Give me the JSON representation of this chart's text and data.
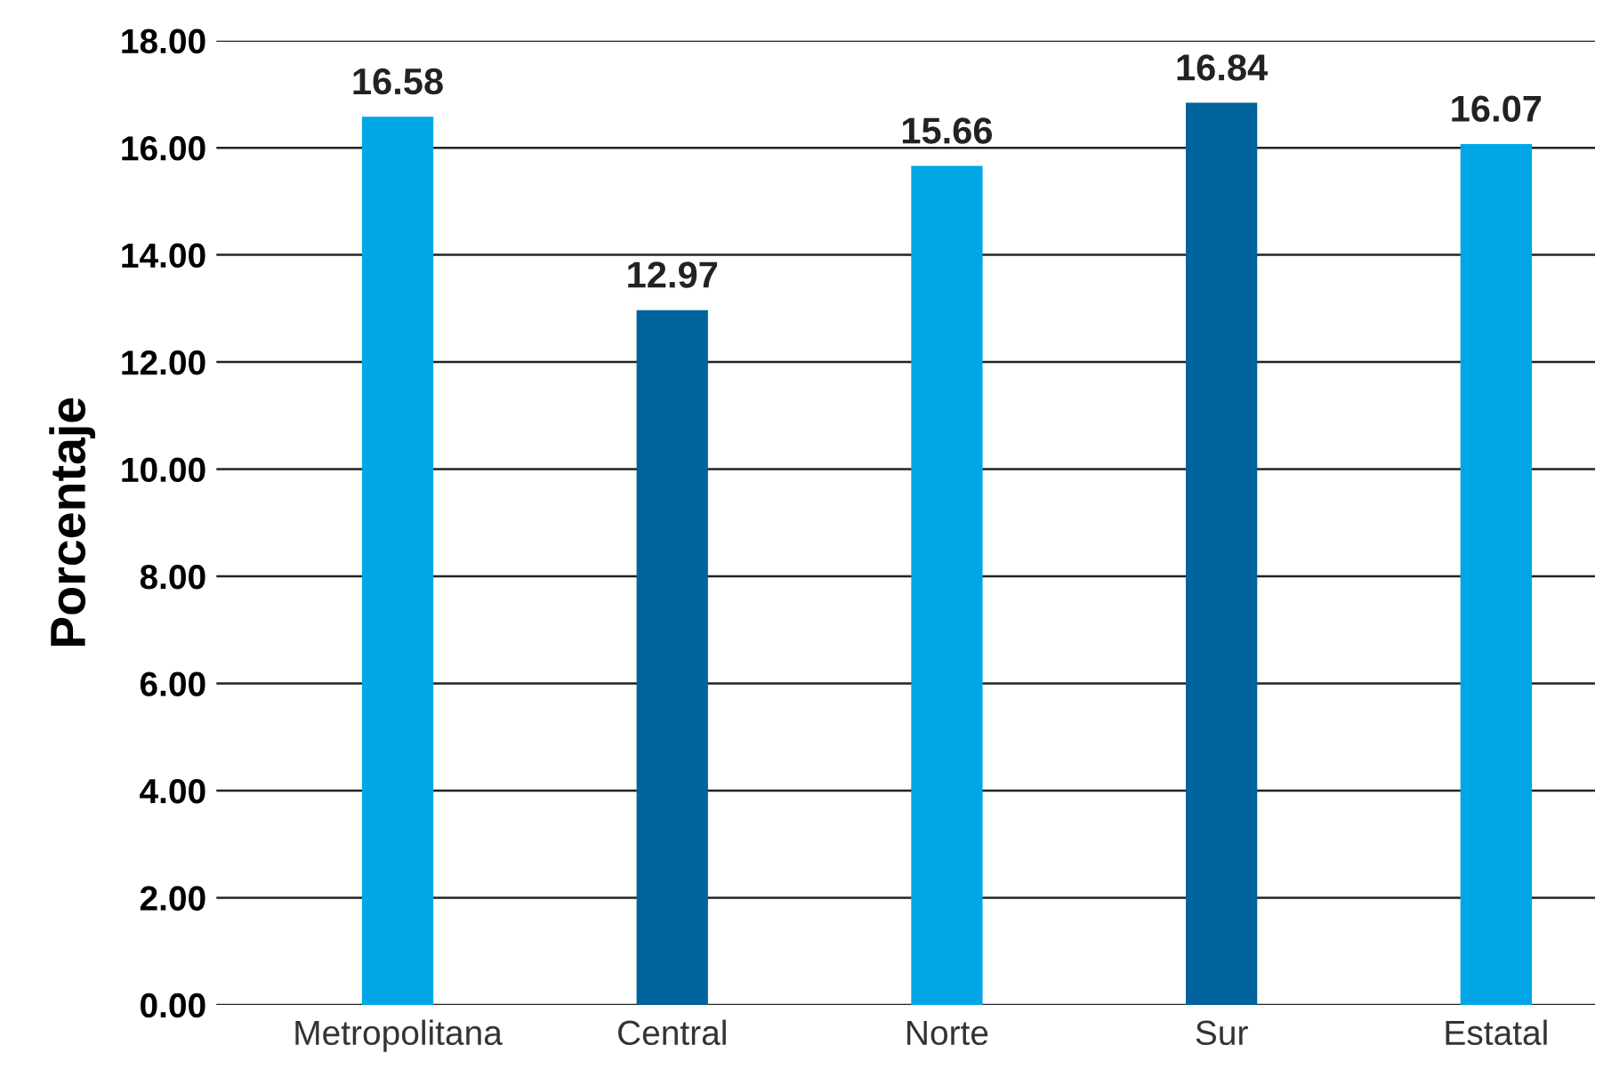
{
  "chart_data": {
    "type": "bar",
    "ylabel": "Porcentaje",
    "categories": [
      "Metropolitana",
      "Central",
      "Norte",
      "Sur",
      "Estatal"
    ],
    "values": [
      16.58,
      12.97,
      15.66,
      16.84,
      16.07
    ],
    "colors": [
      "#00a6e6",
      "#00639c",
      "#00a6e6",
      "#00639c",
      "#00a6e6"
    ],
    "value_labels": [
      "16.58",
      "12.97",
      "15.66",
      "16.84",
      "16.07"
    ],
    "ylim": [
      0,
      18
    ],
    "yticks": [
      {
        "value": 0,
        "label": "0.00"
      },
      {
        "value": 2,
        "label": "2.00"
      },
      {
        "value": 4,
        "label": "4.00"
      },
      {
        "value": 6,
        "label": "6.00"
      },
      {
        "value": 8,
        "label": "8.00"
      },
      {
        "value": 10,
        "label": "10.00"
      },
      {
        "value": 12,
        "label": "12.00"
      },
      {
        "value": 14,
        "label": "14.00"
      },
      {
        "value": 16,
        "label": "16.00"
      },
      {
        "value": 18,
        "label": "18.00"
      }
    ],
    "grid": "y",
    "legend": false
  }
}
